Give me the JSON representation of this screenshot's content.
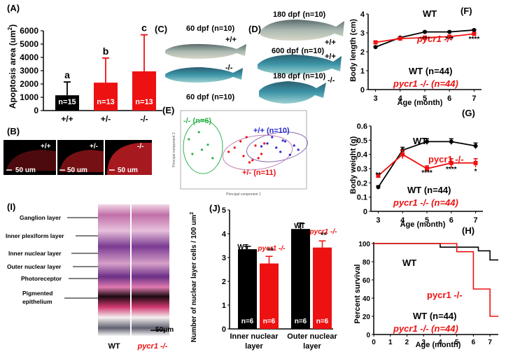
{
  "panels": {
    "A": "(A)",
    "B": "(B)",
    "C": "(C)",
    "D": "(D)",
    "E": "(E)",
    "F": "(F)",
    "G": "(G)",
    "H": "(H)",
    "I": "(I)",
    "J": "(J)"
  },
  "colors": {
    "wt": "#000000",
    "mutant": "#ee1111",
    "het": "#ee1111",
    "panel_label": "#1f3fa8",
    "purple": "#8a6bb0",
    "green": "#2db34a",
    "blue": "#2a2ad0"
  },
  "chart_A": {
    "type": "bar",
    "ylabel": "Apoptosis area (um",
    "ylabel_sup": "2",
    "ylabel_end": ")",
    "categories": [
      "+/+",
      "+/-",
      "-/-"
    ],
    "values": [
      1150,
      2100,
      2950
    ],
    "errors": [
      1000,
      1850,
      2750
    ],
    "colors": [
      "#000000",
      "#ee1111",
      "#ee1111"
    ],
    "n_labels": [
      "n=15",
      "n=13",
      "n=13"
    ],
    "sig_letters": [
      "a",
      "b",
      "c"
    ],
    "yticks": [
      0,
      1000,
      2000,
      3000,
      4000,
      5000,
      6000
    ],
    "ylim": [
      0,
      6000
    ]
  },
  "panel_B": {
    "genotypes": [
      "+/+",
      "+/-",
      "-/-"
    ],
    "scale": [
      "50 um",
      "50 um",
      "50 um"
    ]
  },
  "panel_C": {
    "top_label": "60 dpf",
    "top_n": "(n=10)",
    "top_geno": "+/+",
    "bottom_label": "60 dpf",
    "bottom_n": "(n=10)",
    "bottom_geno": "-/-"
  },
  "panel_D": {
    "rows": [
      {
        "label": "180 dpf",
        "n": "(n=10)",
        "geno": "+/+"
      },
      {
        "label": "600 dpf",
        "n": "(n=10)",
        "geno": "+/+"
      },
      {
        "label": "180 dpf",
        "n": "(n=10)",
        "geno": "-/-"
      }
    ]
  },
  "panel_E": {
    "group_labels": [
      "-/- (n=6)",
      "+/+ (n=10)",
      "+/- (n=11)"
    ],
    "xlabel": "Principal component 1",
    "ylabel": "Principal component 2",
    "chart_data": {
      "type": "scatter",
      "series": [
        {
          "name": "-/- (n=6)",
          "color": "#2db34a",
          "x": [
            -0.92,
            -0.75,
            -0.6,
            -0.86,
            -0.52,
            -0.7
          ],
          "y": [
            0.25,
            0.42,
            0.12,
            -0.1,
            -0.2,
            0.0
          ]
        },
        {
          "name": "+/+ (n=10)",
          "color": "#2a2ad0",
          "x": [
            0.4,
            0.55,
            0.7,
            0.85,
            0.62,
            0.48,
            0.78,
            0.92,
            0.3,
            0.66
          ],
          "y": [
            0.15,
            0.05,
            0.2,
            0.1,
            -0.05,
            0.3,
            -0.12,
            0.0,
            0.08,
            0.22
          ]
        },
        {
          "name": "+/- (n=11)",
          "color": "#ee1111",
          "x": [
            -0.15,
            0.0,
            0.15,
            0.3,
            -0.05,
            0.2,
            0.1,
            0.35,
            -0.25,
            0.05,
            0.25
          ],
          "y": [
            0.05,
            -0.15,
            -0.25,
            -0.1,
            0.2,
            0.1,
            -0.3,
            0.15,
            -0.05,
            0.3,
            -0.2
          ]
        }
      ]
    }
  },
  "chart_F": {
    "type": "line",
    "ylabel": "Body length (cm)",
    "xlabel": "Age (month)",
    "x": [
      3,
      4,
      5,
      6,
      7
    ],
    "ylim": [
      0,
      4
    ],
    "yticks": [
      0,
      1,
      2,
      3,
      4
    ],
    "series": [
      {
        "name": "WT",
        "color": "#000000",
        "values": [
          2.25,
          2.75,
          3.05,
          3.05,
          3.15
        ],
        "errors": [
          0.03,
          0.04,
          0.04,
          0.04,
          0.04
        ]
      },
      {
        "name": "pycr1 -/-",
        "color": "#ee1111",
        "values": [
          2.5,
          2.7,
          2.75,
          2.8,
          2.95
        ],
        "errors": [
          0.03,
          0.04,
          0.04,
          0.04,
          0.04
        ]
      }
    ],
    "series_labels": [
      "WT",
      "pycr1 -/-"
    ],
    "legend": [
      "WT (n=44)",
      "pycr1 -/- (n=44)"
    ],
    "sig": [
      {
        "x": 5,
        "text": "****"
      },
      {
        "x": 6,
        "text": "***"
      },
      {
        "x": 7,
        "text": "****"
      }
    ]
  },
  "chart_G": {
    "type": "line",
    "ylabel": "Body weight (g)",
    "xlabel": "Age (month)",
    "x": [
      3,
      4,
      5,
      6,
      7
    ],
    "ylim": [
      0,
      0.6
    ],
    "yticks": [
      "0",
      "0.1",
      "0.2",
      "0.3",
      "0.4",
      "0.5",
      "0.6"
    ],
    "series": [
      {
        "name": "WT",
        "color": "#000000",
        "values": [
          0.17,
          0.43,
          0.49,
          0.49,
          0.46
        ],
        "errors": [
          0.01,
          0.02,
          0.02,
          0.02,
          0.02
        ]
      },
      {
        "name": "pycr1 -/-",
        "color": "#ee1111",
        "values": [
          0.25,
          0.4,
          0.3,
          0.34,
          0.34
        ],
        "errors": [
          0.01,
          0.03,
          0.02,
          0.03,
          0.03
        ]
      }
    ],
    "series_labels": [
      "WT",
      "pycr1 -/-"
    ],
    "legend": [
      "WT (n=44)",
      "pycr1 -/- (n=44)"
    ],
    "sig": [
      {
        "x": 3,
        "text": "**"
      },
      {
        "x": 5,
        "text": "****"
      },
      {
        "x": 6,
        "text": "****"
      },
      {
        "x": 7,
        "text": "*"
      }
    ]
  },
  "chart_H": {
    "type": "line",
    "ylabel": "Percent survival",
    "xlabel": "Age (month)",
    "xlim": [
      0,
      7.5
    ],
    "xticks": [
      0,
      1,
      2,
      3,
      4,
      5,
      6,
      7
    ],
    "yticks": [
      0,
      20,
      40,
      60,
      80,
      100
    ],
    "series": [
      {
        "name": "WT",
        "color": "#000000",
        "steps": [
          [
            0,
            100
          ],
          [
            4,
            100
          ],
          [
            4,
            96
          ],
          [
            6.3,
            96
          ],
          [
            6.3,
            92
          ],
          [
            7,
            92
          ],
          [
            7,
            82
          ],
          [
            7.5,
            82
          ]
        ]
      },
      {
        "name": "pycr1 -/-",
        "color": "#ee1111",
        "steps": [
          [
            0,
            100
          ],
          [
            5,
            100
          ],
          [
            5,
            91
          ],
          [
            6,
            91
          ],
          [
            6,
            50
          ],
          [
            7,
            50
          ],
          [
            7,
            20
          ],
          [
            7.5,
            20
          ]
        ]
      }
    ],
    "series_labels": [
      "WT",
      "pycr1 -/-"
    ],
    "legend": [
      "WT (n=44)",
      "pycr1 -/- (n=44)"
    ]
  },
  "panel_I": {
    "layers": [
      "Ganglion layer",
      "Inner plexiform layer",
      "Inner nuclear layer",
      "Outer nuclear layer",
      "Photoreceptor",
      "Pigmented",
      "epithelium"
    ],
    "captions": [
      "WT",
      "pycr1 -/-"
    ],
    "scale": "50μm"
  },
  "chart_J": {
    "type": "bar",
    "ylabel": "Number of nuclear layer cells / 100 um",
    "ylabel_sup": "2",
    "categories": [
      "Inner nuclear",
      "layer",
      "Outer nuclear",
      "layer"
    ],
    "groups": [
      {
        "values": [
          3.35,
          2.75
        ],
        "errors": [
          0.12,
          0.3
        ]
      },
      {
        "values": [
          4.2,
          3.42
        ],
        "errors": [
          0.25,
          0.28
        ]
      }
    ],
    "ylim": [
      0,
      5
    ],
    "yticks": [
      0,
      1,
      2,
      3,
      4,
      5
    ],
    "colors": [
      "#000000",
      "#ee1111"
    ],
    "n_labels": [
      "n=6",
      "n=6",
      "n=6",
      "n=6"
    ],
    "sig": [
      "**",
      "**"
    ],
    "series_labels": [
      "WT",
      "pycr1 -/-",
      "WT",
      "pycr1 -/-"
    ]
  }
}
